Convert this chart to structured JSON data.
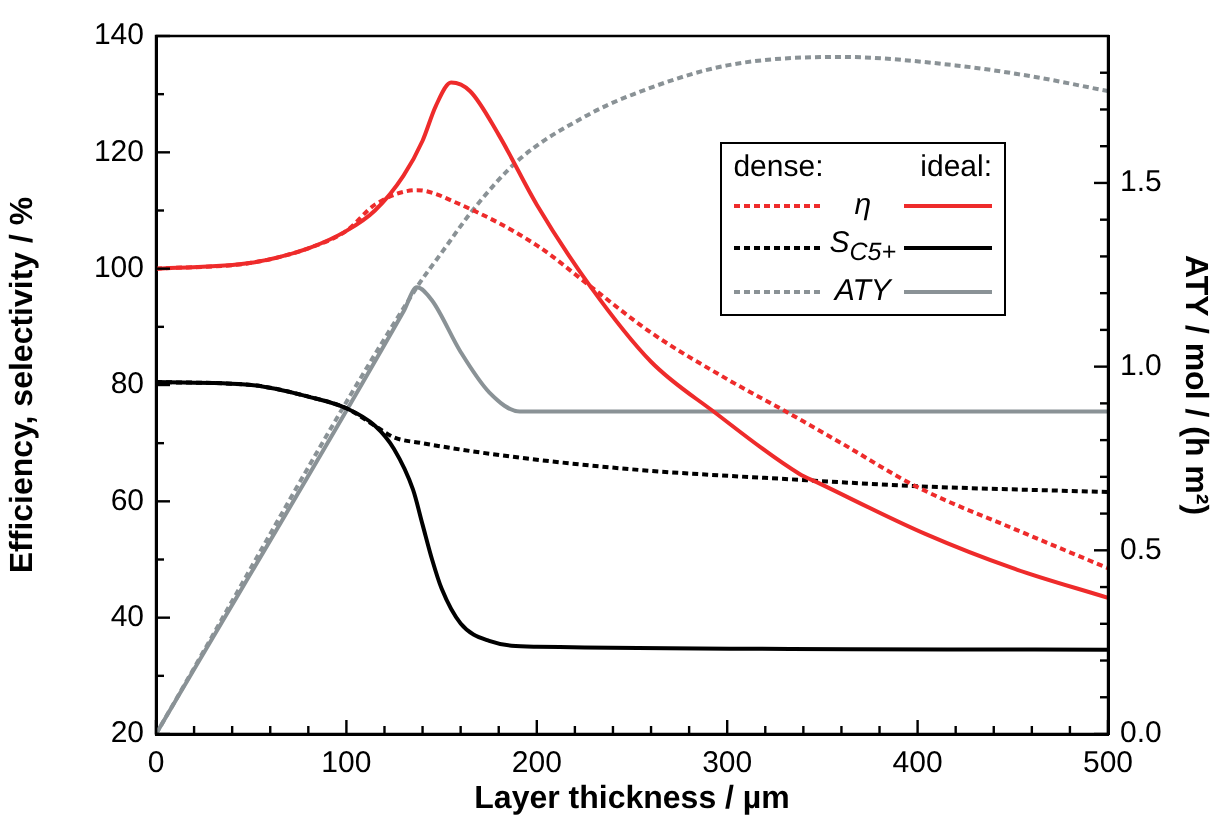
{
  "chart_data": {
    "type": "line",
    "xlabel": "Layer thickness / µm",
    "ylabel": "Efficiency, selectivity / %",
    "y2label": "ATY / mol / (h m²)",
    "xlim": [
      0,
      500
    ],
    "ylim": [
      20,
      140
    ],
    "y2lim": [
      0,
      1.9
    ],
    "xticks": [
      0,
      {
        "value": 20,
        "label": null
      },
      {
        "value": 40,
        "label": null
      },
      {
        "value": 60,
        "label": null
      },
      {
        "value": 80,
        "label": null
      },
      100,
      {
        "value": 120,
        "label": null
      },
      {
        "value": 140,
        "label": null
      },
      {
        "value": 160,
        "label": null
      },
      {
        "value": 180,
        "label": null
      },
      200,
      {
        "value": 220,
        "label": null
      },
      {
        "value": 240,
        "label": null
      },
      {
        "value": 260,
        "label": null
      },
      {
        "value": 280,
        "label": null
      },
      300,
      {
        "value": 320,
        "label": null
      },
      {
        "value": 340,
        "label": null
      },
      {
        "value": 360,
        "label": null
      },
      {
        "value": 380,
        "label": null
      },
      400,
      {
        "value": 420,
        "label": null
      },
      {
        "value": 440,
        "label": null
      },
      {
        "value": 460,
        "label": null
      },
      {
        "value": 480,
        "label": null
      },
      500
    ],
    "yticks": [
      20,
      {
        "value": 30,
        "label": null
      },
      40,
      {
        "value": 50,
        "label": null
      },
      60,
      {
        "value": 70,
        "label": null
      },
      80,
      {
        "value": 90,
        "label": null
      },
      100,
      {
        "value": 110,
        "label": null
      },
      120,
      {
        "value": 130,
        "label": null
      },
      140
    ],
    "y2ticks": [
      {
        "value": 0,
        "label": "0.0"
      },
      {
        "value": 0.1,
        "label": null
      },
      {
        "value": 0.2,
        "label": null
      },
      {
        "value": 0.3,
        "label": null
      },
      {
        "value": 0.4,
        "label": null
      },
      {
        "value": 0.5,
        "label": "0.5"
      },
      {
        "value": 0.6,
        "label": null
      },
      {
        "value": 0.7,
        "label": null
      },
      {
        "value": 0.8,
        "label": null
      },
      {
        "value": 0.9,
        "label": null
      },
      {
        "value": 1,
        "label": "1.0"
      },
      {
        "value": 1.1,
        "label": null
      },
      {
        "value": 1.2,
        "label": null
      },
      {
        "value": 1.3,
        "label": null
      },
      {
        "value": 1.4,
        "label": null
      },
      {
        "value": 1.5,
        "label": "1.5"
      },
      {
        "value": 1.6,
        "label": null
      },
      {
        "value": 1.7,
        "label": null
      },
      {
        "value": 1.8,
        "label": null
      }
    ],
    "grid": false,
    "legend": "top right",
    "marker": "none",
    "annotations": [
      "dense:",
      "ideal:"
    ],
    "series": [
      {
        "color": "#ee2b2b",
        "line_style": "dashed",
        "x": [
          0,
          50,
          80,
          100,
          115,
          137,
          160,
          200,
          228,
          260,
          300,
          331,
          360,
          399,
          457,
          500
        ],
        "values": [
          100,
          101,
          103.5,
          106.5,
          111,
          113.5,
          111,
          104,
          97,
          89,
          81,
          75.4,
          70,
          62.6,
          54.4,
          48.5
        ]
      },
      {
        "name": "η",
        "color": "#ee2b2b",
        "line_style": "solid",
        "x": [
          0,
          50,
          80,
          100,
          115,
          130,
          140,
          147,
          155,
          165,
          180,
          200,
          228,
          260,
          293,
          338,
          347,
          404,
          450,
          500
        ],
        "values": [
          100,
          101,
          103.5,
          106.5,
          110,
          116,
          122,
          128,
          132,
          130.5,
          123,
          111,
          97,
          84,
          75.4,
          64.7,
          63.3,
          54.4,
          48.5,
          43.4
        ]
      },
      {
        "color": "#000000",
        "line_style": "dashed",
        "x": [
          0,
          50,
          80,
          100,
          115,
          125,
          140,
          177,
          250,
          338,
          400,
          500
        ],
        "values": [
          80.5,
          80,
          78,
          76,
          73,
          71,
          70,
          68.1,
          65.5,
          63.7,
          62.6,
          61.6
        ]
      },
      {
        "name": "S$_{C5+}$",
        "color": "#000000",
        "line_style": "solid",
        "x": [
          0,
          50,
          80,
          100,
          115,
          125,
          135,
          140,
          145,
          150,
          160,
          175,
          200,
          500
        ],
        "values": [
          80.5,
          80,
          78,
          76,
          73,
          69,
          62,
          56,
          50,
          45,
          39,
          36,
          35,
          34.5
        ]
      },
      {
        "color": "#8a9296",
        "line_style": "dashed",
        "axis": "y2",
        "x": [
          0,
          137,
          150,
          167,
          191,
          225,
          250,
          300,
          360,
          420,
          460,
          500
        ],
        "values": [
          0,
          1.216,
          1.31,
          1.43,
          1.565,
          1.68,
          1.74,
          1.82,
          1.843,
          1.82,
          1.79,
          1.75
        ]
      },
      {
        "name": "ATY",
        "color": "#8a9296",
        "line_style": "solid",
        "axis": "y2",
        "x": [
          0,
          130,
          137,
          145,
          160,
          175,
          191,
          500
        ],
        "values": [
          0,
          1.15,
          1.216,
          1.18,
          1.04,
          0.93,
          0.878,
          0.878
        ]
      }
    ]
  }
}
